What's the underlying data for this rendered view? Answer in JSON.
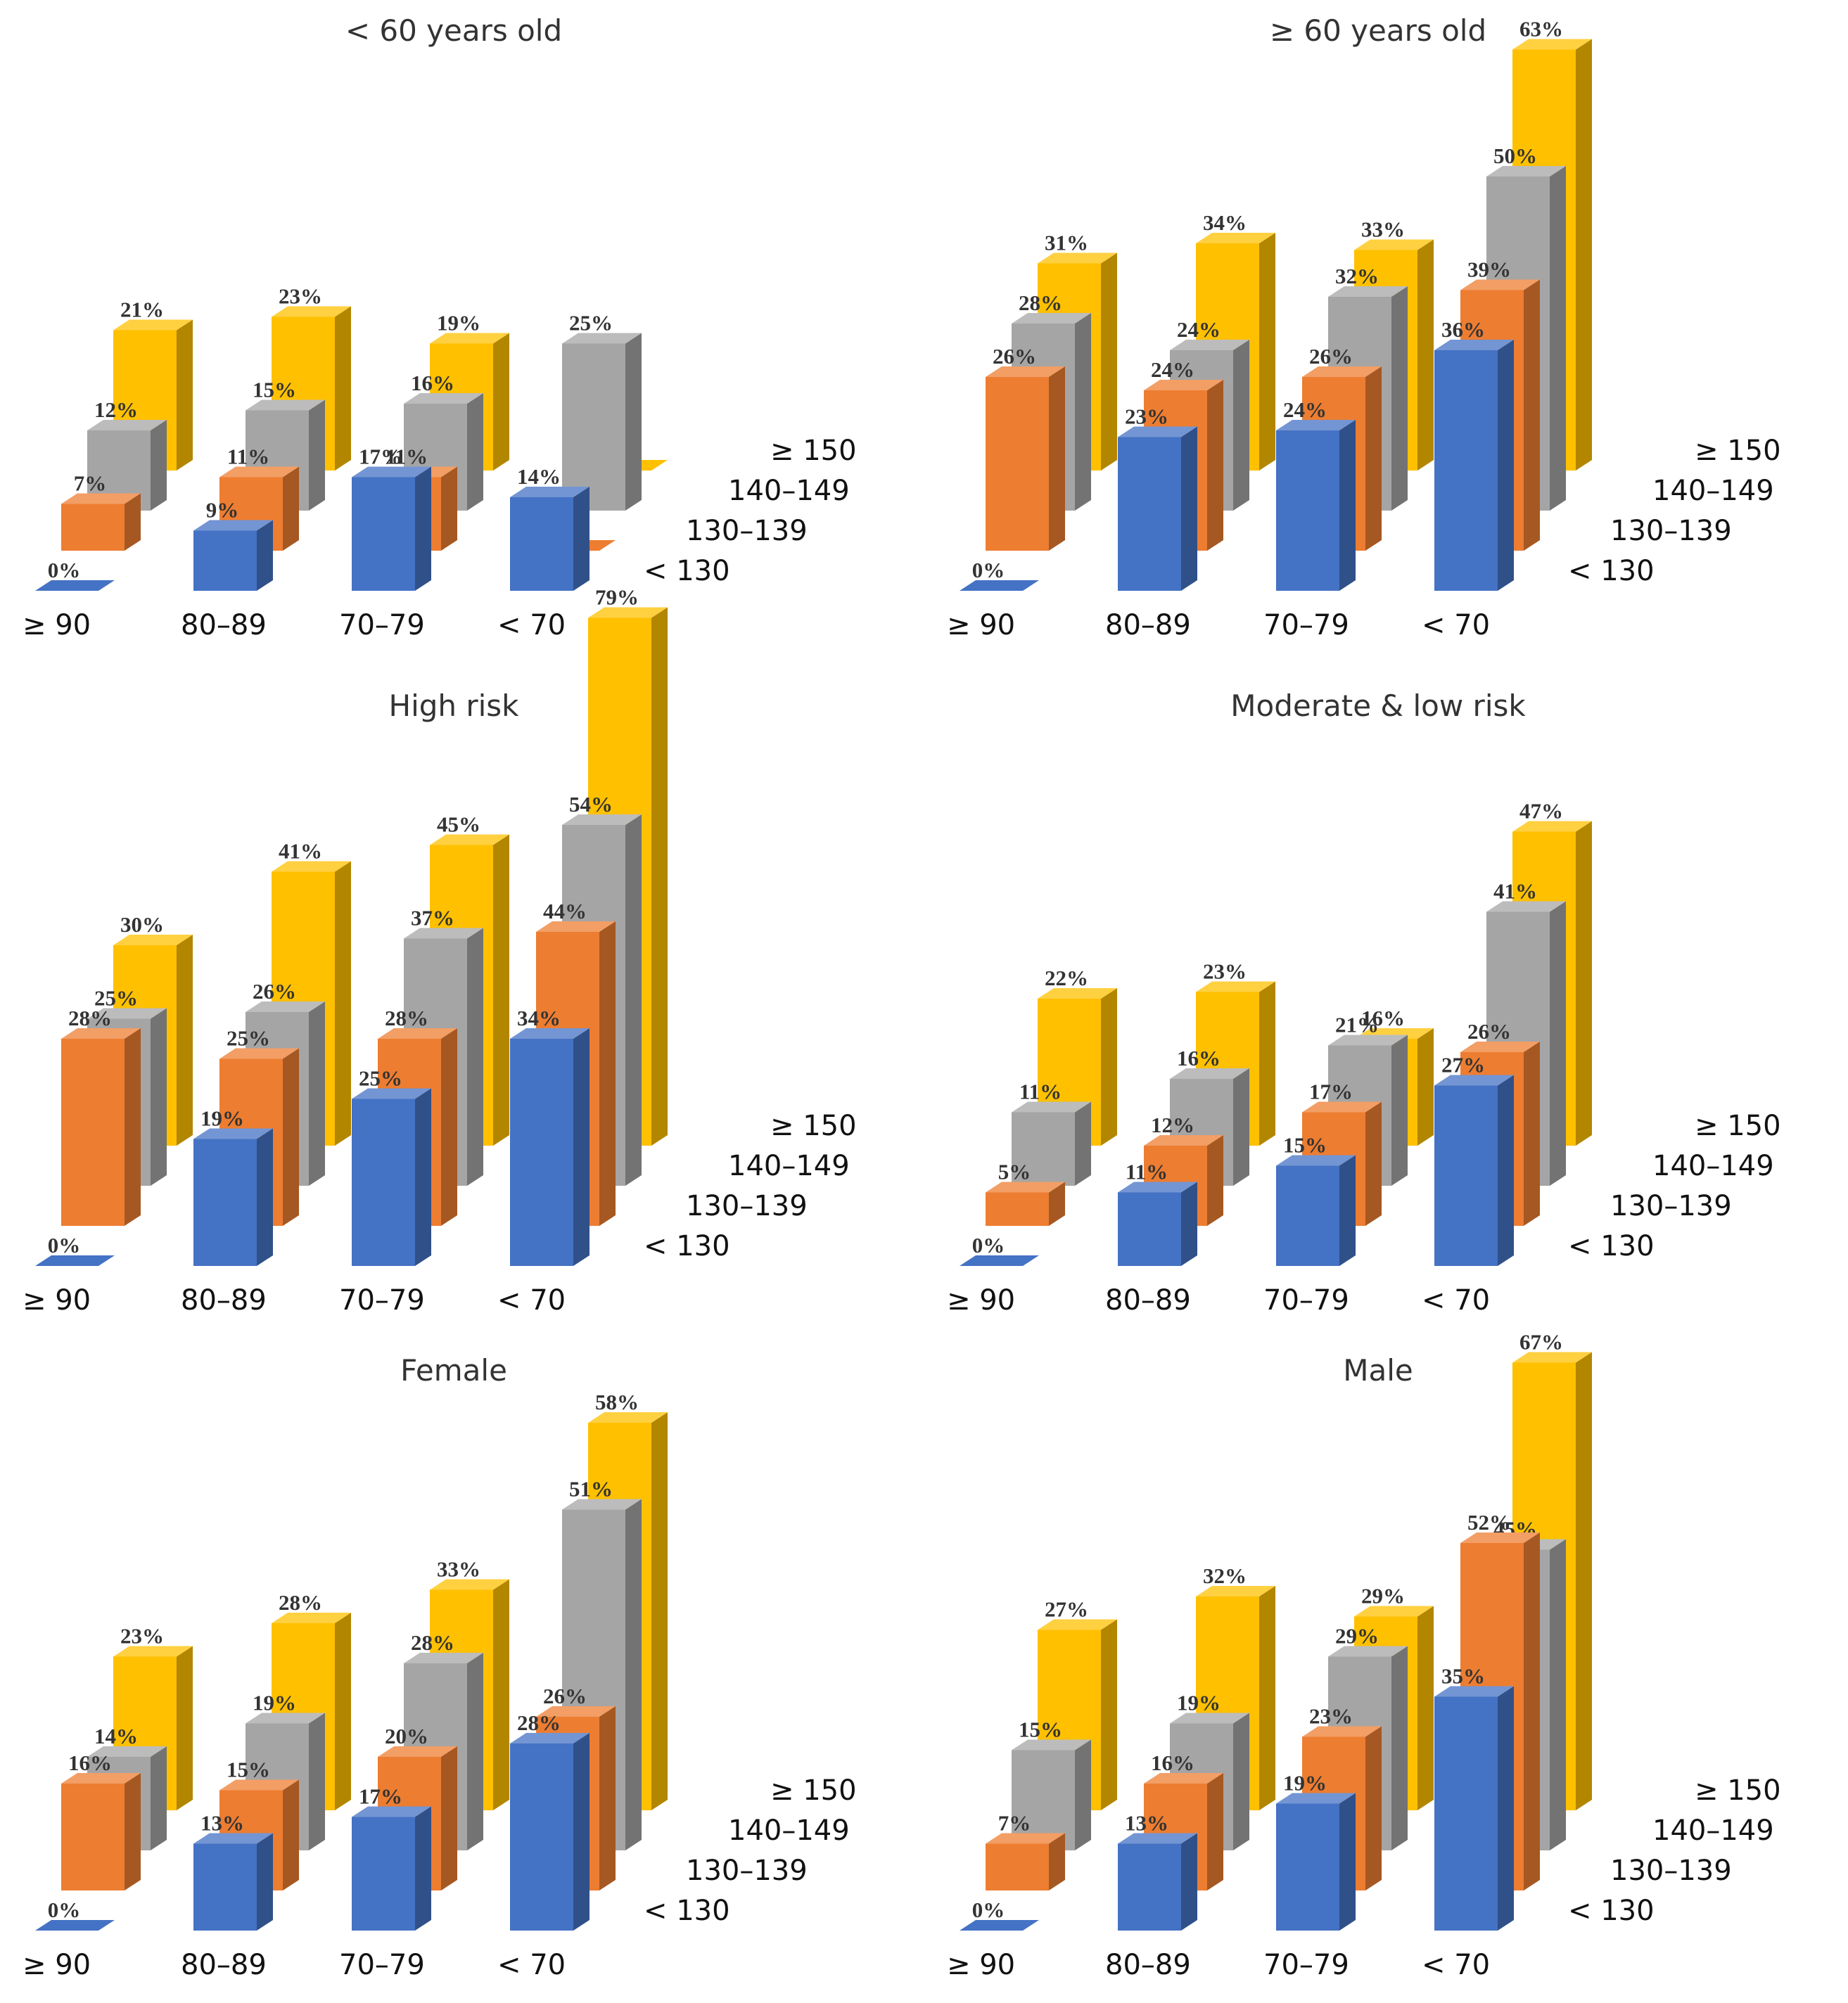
{
  "colors": {
    "lt130": "#4472C4",
    "130-139": "#ED7D31",
    "140-149": "#A5A5A5",
    "ge150": "#FFC000"
  },
  "chart_data": [
    {
      "type": "bar",
      "title": "< 60 years old",
      "categories": [
        "≥ 90",
        "80–89",
        "70–79",
        "< 70"
      ],
      "series": [
        {
          "name": "< 130",
          "values": [
            0,
            9,
            17,
            14
          ]
        },
        {
          "name": "130–139",
          "values": [
            7,
            11,
            11,
            0
          ]
        },
        {
          "name": "140–149",
          "values": [
            12,
            15,
            16,
            25
          ]
        },
        {
          "name": "≥ 150",
          "values": [
            21,
            23,
            19,
            0
          ]
        }
      ]
    },
    {
      "type": "bar",
      "title": "≥ 60 years old",
      "categories": [
        "≥ 90",
        "80–89",
        "70–79",
        "< 70"
      ],
      "series": [
        {
          "name": "< 130",
          "values": [
            0,
            23,
            24,
            36
          ]
        },
        {
          "name": "130–139",
          "values": [
            26,
            24,
            26,
            39
          ]
        },
        {
          "name": "140–149",
          "values": [
            28,
            24,
            32,
            50
          ]
        },
        {
          "name": "≥ 150",
          "values": [
            31,
            34,
            33,
            63
          ]
        }
      ]
    },
    {
      "type": "bar",
      "title": "High risk",
      "categories": [
        "≥ 90",
        "80–89",
        "70–79",
        "< 70"
      ],
      "series": [
        {
          "name": "< 130",
          "values": [
            0,
            19,
            25,
            34
          ]
        },
        {
          "name": "130–139",
          "values": [
            28,
            25,
            28,
            44
          ]
        },
        {
          "name": "140–149",
          "values": [
            25,
            26,
            37,
            54
          ]
        },
        {
          "name": "≥ 150",
          "values": [
            30,
            41,
            45,
            79
          ]
        }
      ]
    },
    {
      "type": "bar",
      "title": "Moderate & low risk",
      "categories": [
        "≥ 90",
        "80–89",
        "70–79",
        "< 70"
      ],
      "series": [
        {
          "name": "< 130",
          "values": [
            0,
            11,
            15,
            27
          ]
        },
        {
          "name": "130–139",
          "values": [
            5,
            12,
            17,
            26
          ]
        },
        {
          "name": "140–149",
          "values": [
            11,
            16,
            21,
            41
          ]
        },
        {
          "name": "≥ 150",
          "values": [
            22,
            23,
            16,
            47
          ]
        }
      ]
    },
    {
      "type": "bar",
      "title": "Female",
      "categories": [
        "≥ 90",
        "80–89",
        "70–79",
        "< 70"
      ],
      "series": [
        {
          "name": "< 130",
          "values": [
            0,
            13,
            17,
            28
          ]
        },
        {
          "name": "130–139",
          "values": [
            16,
            15,
            20,
            26
          ]
        },
        {
          "name": "140–149",
          "values": [
            14,
            19,
            28,
            51
          ]
        },
        {
          "name": "≥ 150",
          "values": [
            23,
            28,
            33,
            58
          ]
        }
      ]
    },
    {
      "type": "bar",
      "title": "Male",
      "categories": [
        "≥ 90",
        "80–89",
        "70–79",
        "< 70"
      ],
      "series": [
        {
          "name": "< 130",
          "values": [
            0,
            13,
            19,
            35
          ]
        },
        {
          "name": "130–139",
          "values": [
            7,
            16,
            23,
            52
          ]
        },
        {
          "name": "140–149",
          "values": [
            15,
            19,
            29,
            45
          ]
        },
        {
          "name": "≥ 150",
          "values": [
            27,
            32,
            29,
            67
          ]
        }
      ]
    }
  ]
}
